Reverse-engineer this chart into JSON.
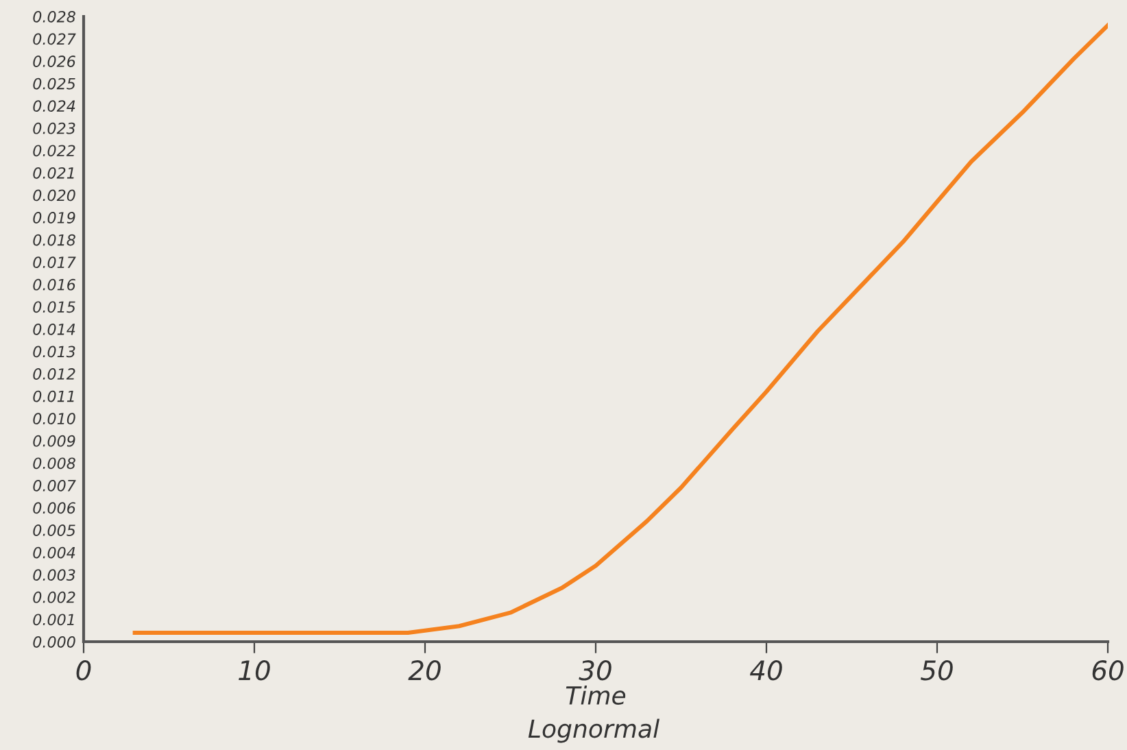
{
  "chart_data": {
    "type": "line",
    "xlabel": "Time",
    "annotations": [
      "Lognormal"
    ],
    "series": [
      {
        "color": "#f5821f",
        "x": [
          3,
          10,
          18,
          19,
          20,
          22,
          25,
          28,
          30,
          33,
          35,
          38,
          40,
          43,
          45,
          48,
          50,
          52,
          55,
          58,
          60
        ],
        "values": [
          0.0004,
          0.0004,
          0.0004,
          0.0004,
          0.0005,
          0.0007,
          0.0013,
          0.0024,
          0.0034,
          0.0054,
          0.0069,
          0.0095,
          0.0112,
          0.0139,
          0.0155,
          0.0179,
          0.0197,
          0.0215,
          0.0237,
          0.0261,
          0.0276
        ]
      }
    ],
    "xlim": [
      0,
      60
    ],
    "xticks": [
      0,
      10,
      20,
      30,
      40,
      50,
      60
    ],
    "ylim": [
      0,
      0.028
    ],
    "yticks": [
      {
        "value": 0,
        "label": "0.000"
      },
      {
        "value": 0.001,
        "label": "0.001"
      },
      {
        "value": 0.002,
        "label": "0.002"
      },
      {
        "value": 0.003,
        "label": "0.003"
      },
      {
        "value": 0.004,
        "label": "0.004"
      },
      {
        "value": 0.005,
        "label": "0.005"
      },
      {
        "value": 0.006,
        "label": "0.006"
      },
      {
        "value": 0.007,
        "label": "0.007"
      },
      {
        "value": 0.008,
        "label": "0.008"
      },
      {
        "value": 0.009,
        "label": "0.009"
      },
      {
        "value": 0.01,
        "label": "0.010"
      },
      {
        "value": 0.011,
        "label": "0.011"
      },
      {
        "value": 0.012,
        "label": "0.012"
      },
      {
        "value": 0.013,
        "label": "0.013"
      },
      {
        "value": 0.014,
        "label": "0.014"
      },
      {
        "value": 0.015,
        "label": "0.015"
      },
      {
        "value": 0.016,
        "label": "0.016"
      },
      {
        "value": 0.017,
        "label": "0.017"
      },
      {
        "value": 0.018,
        "label": "0.018"
      },
      {
        "value": 0.019,
        "label": "0.019"
      },
      {
        "value": 0.02,
        "label": "0.020"
      },
      {
        "value": 0.021,
        "label": "0.021"
      },
      {
        "value": 0.022,
        "label": "0.022"
      },
      {
        "value": 0.023,
        "label": "0.023"
      },
      {
        "value": 0.024,
        "label": "0.024"
      },
      {
        "value": 0.025,
        "label": "0.025"
      },
      {
        "value": 0.026,
        "label": "0.026"
      },
      {
        "value": 0.027,
        "label": "0.027"
      },
      {
        "value": 0.028,
        "label": "0.028"
      }
    ],
    "grid": false,
    "legend": false,
    "marker": "none",
    "line_style": "solid"
  }
}
